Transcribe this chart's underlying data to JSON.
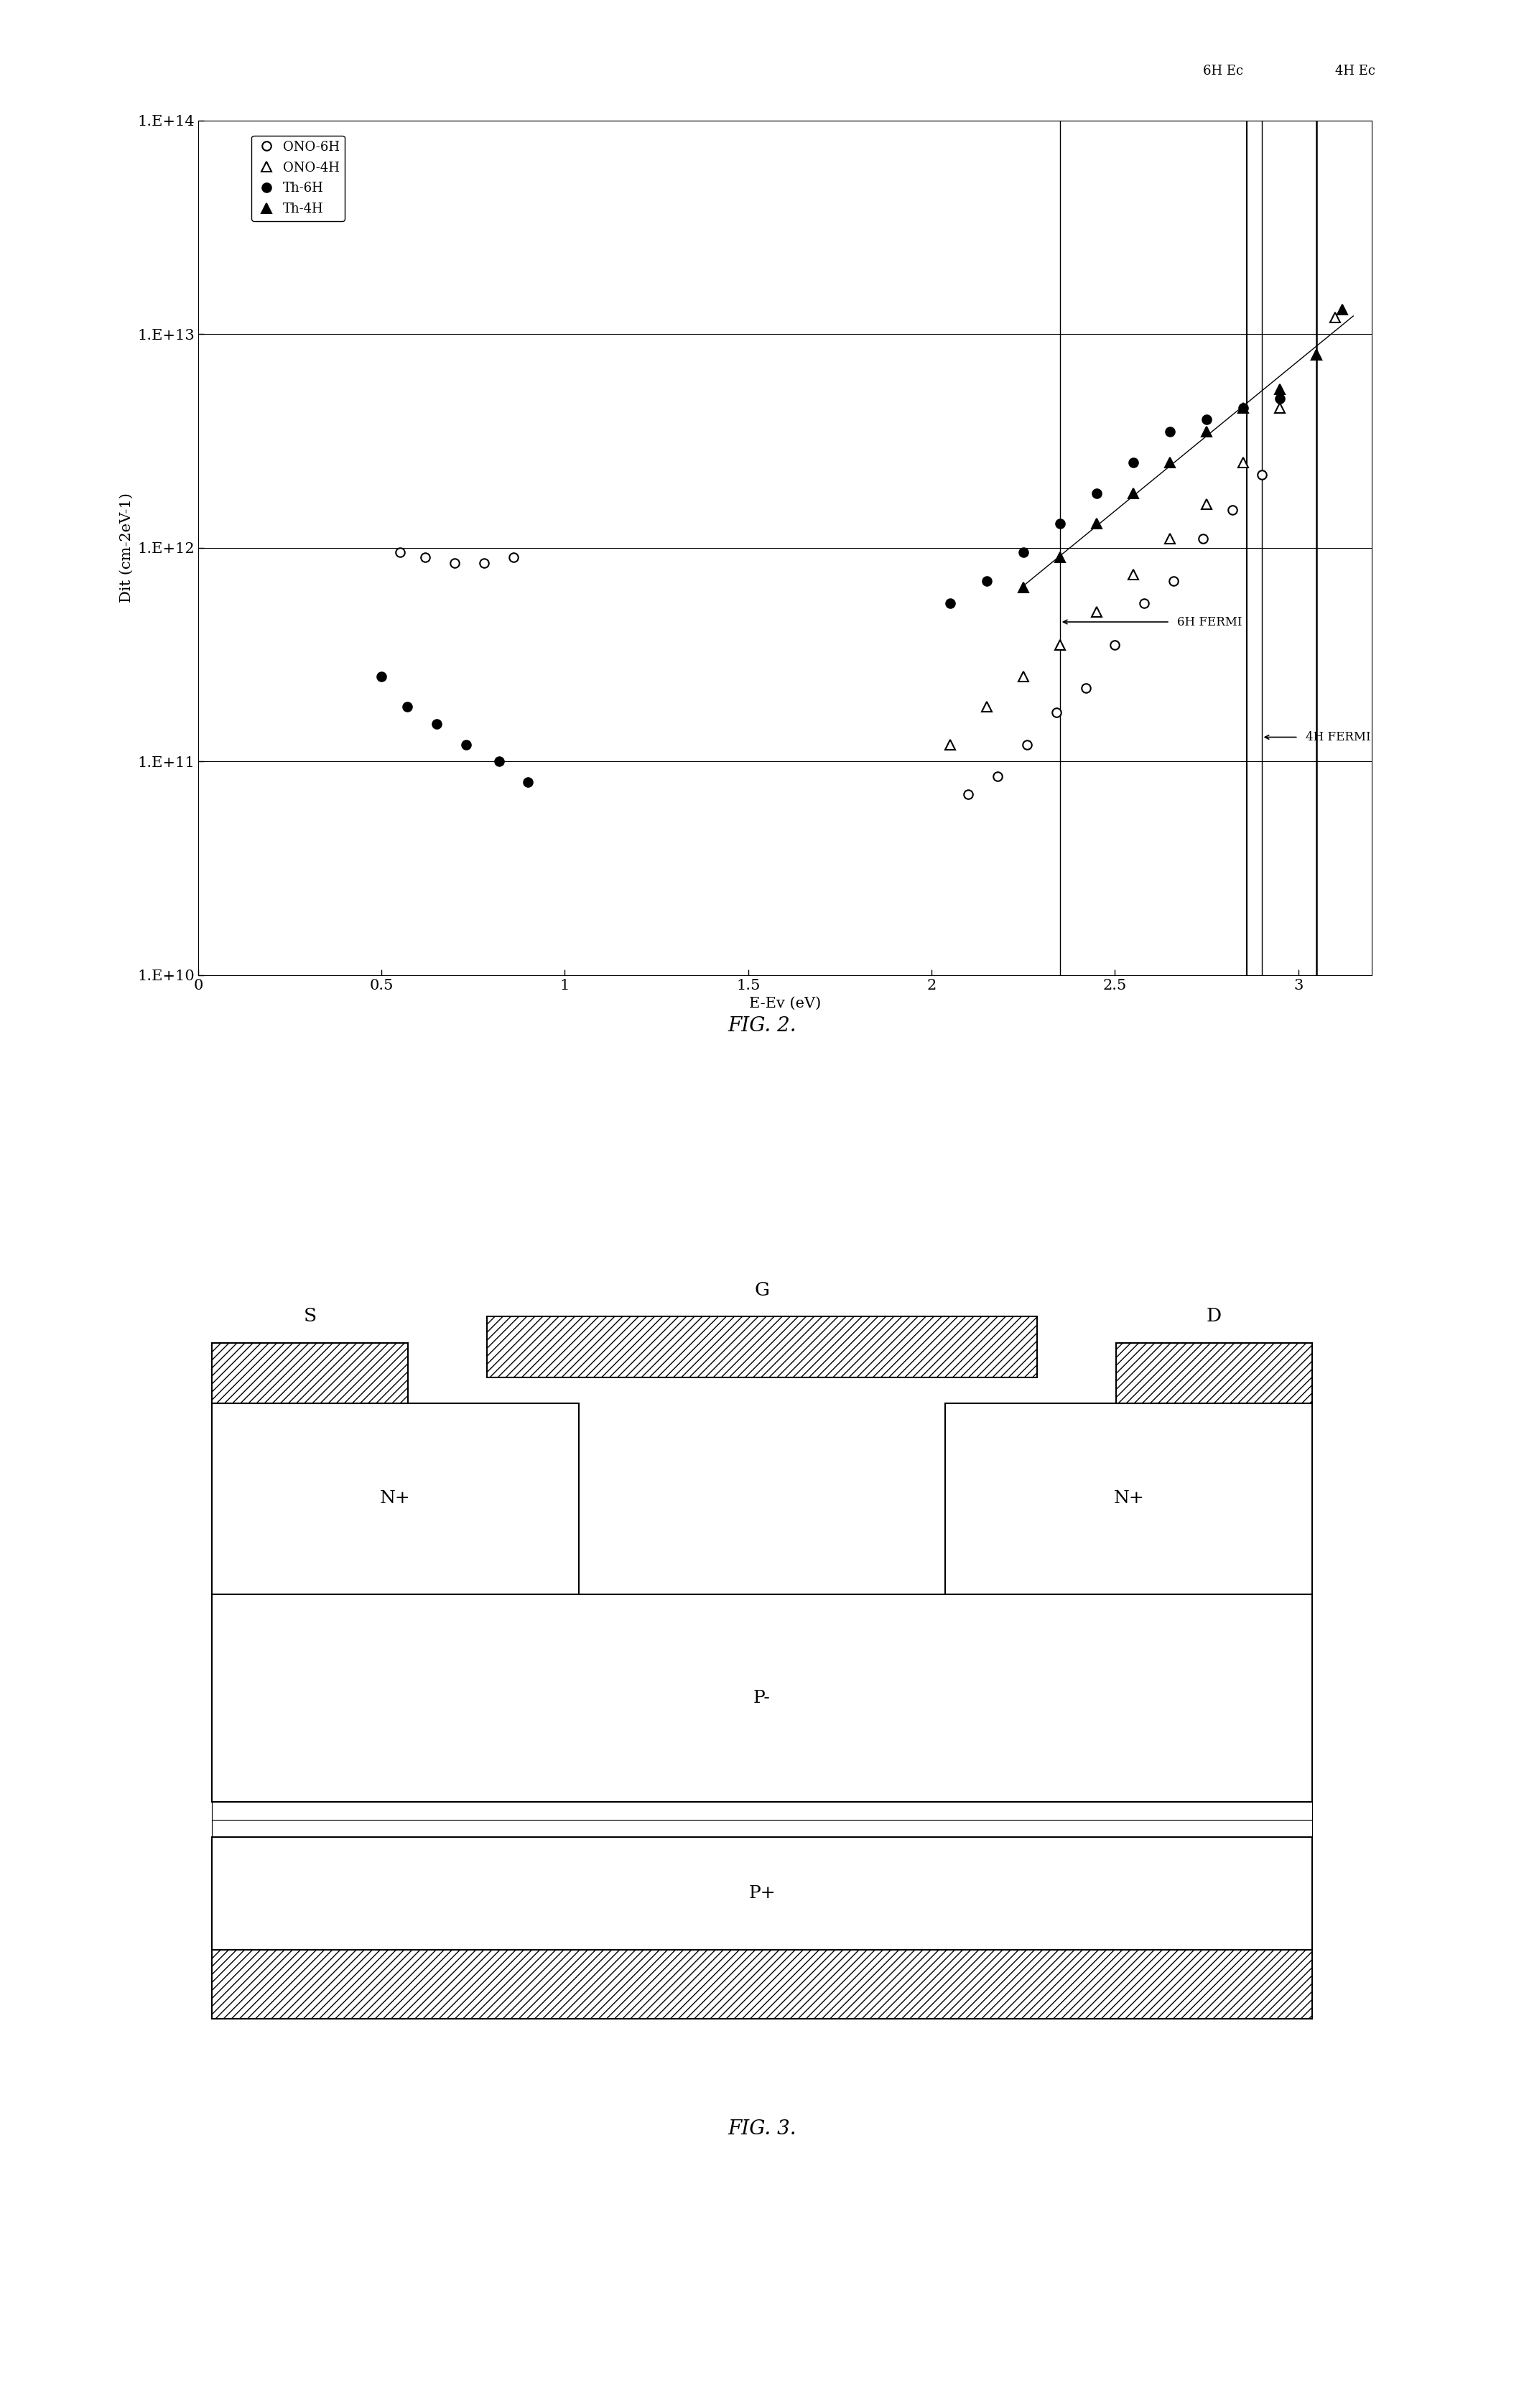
{
  "fig2": {
    "title": "FIG. 2.",
    "xlabel": "E-Ev (eV)",
    "ylabel": "Dit (cm−2eV−1)",
    "ylabel_display": "Dit (cm-2eV-1)",
    "xlim": [
      0,
      3.2
    ],
    "ylim_low": 10000000000.0,
    "ylim_high": 100000000000000.0,
    "xticks": [
      0,
      0.5,
      1,
      1.5,
      2,
      2.5,
      3
    ],
    "xtick_labels": [
      "0",
      "0.5",
      "1",
      "1.5",
      "2",
      "2.5",
      "3"
    ],
    "ytick_vals": [
      10000000000.0,
      100000000000.0,
      1000000000000.0,
      10000000000000.0,
      100000000000000.0
    ],
    "ytick_labels": [
      "1.E+10",
      "1.E+11",
      "1.E+12",
      "1.E+13",
      "1.E+14"
    ],
    "ono6h_x": [
      0.55,
      0.62,
      0.7,
      0.78,
      0.86,
      2.1,
      2.18,
      2.26,
      2.34,
      2.42,
      2.5,
      2.58,
      2.66,
      2.74,
      2.82,
      2.9
    ],
    "ono6h_y": [
      950000000000.0,
      900000000000.0,
      850000000000.0,
      850000000000.0,
      900000000000.0,
      70000000000.0,
      85000000000.0,
      120000000000.0,
      170000000000.0,
      220000000000.0,
      350000000000.0,
      550000000000.0,
      700000000000.0,
      1100000000000.0,
      1500000000000.0,
      2200000000000.0
    ],
    "ono4h_x": [
      2.05,
      2.15,
      2.25,
      2.35,
      2.45,
      2.55,
      2.65,
      2.75,
      2.85,
      2.95,
      3.05,
      3.1
    ],
    "ono4h_y": [
      120000000000.0,
      180000000000.0,
      250000000000.0,
      350000000000.0,
      500000000000.0,
      750000000000.0,
      1100000000000.0,
      1600000000000.0,
      2500000000000.0,
      4500000000000.0,
      8000000000000.0,
      12000000000000.0
    ],
    "th6h_x": [
      0.5,
      0.57,
      0.65,
      0.73,
      0.82,
      0.9,
      2.05,
      2.15,
      2.25,
      2.35,
      2.45,
      2.55,
      2.65,
      2.75,
      2.85,
      2.95
    ],
    "th6h_y": [
      250000000000.0,
      180000000000.0,
      150000000000.0,
      120000000000.0,
      100000000000.0,
      80000000000.0,
      550000000000.0,
      700000000000.0,
      950000000000.0,
      1300000000000.0,
      1800000000000.0,
      2500000000000.0,
      3500000000000.0,
      4000000000000.0,
      4500000000000.0,
      5000000000000.0
    ],
    "th4h_x": [
      2.25,
      2.35,
      2.45,
      2.55,
      2.65,
      2.75,
      2.85,
      2.95,
      3.05,
      3.12
    ],
    "th4h_y": [
      650000000000.0,
      900000000000.0,
      1300000000000.0,
      1800000000000.0,
      2500000000000.0,
      3500000000000.0,
      4500000000000.0,
      5500000000000.0,
      8000000000000.0,
      13000000000000.0
    ],
    "vline_6h_ec": 2.86,
    "vline_4h_ec": 3.05,
    "vline_6h_fermi": 2.35,
    "vline_4h_fermi": 2.9,
    "label_6h_ec": "6H Ec",
    "label_4h_ec": "4H Ec",
    "label_6h_fermi": "6H FERMI",
    "label_4h_fermi": "4H FERMI",
    "legend_labels": [
      "ONO-6H",
      "ONO-4H",
      "Th-6H",
      "Th-4H"
    ]
  },
  "fig3": {
    "title": "FIG. 3.",
    "gate_label": "G",
    "source_label": "S",
    "drain_label": "D",
    "np_left_label": "N+",
    "np_right_label": "N+",
    "pm_label": "P-",
    "pp_label": "P+"
  },
  "fig2_caption": "FIG. 2.",
  "fig3_caption": "FIG. 3."
}
